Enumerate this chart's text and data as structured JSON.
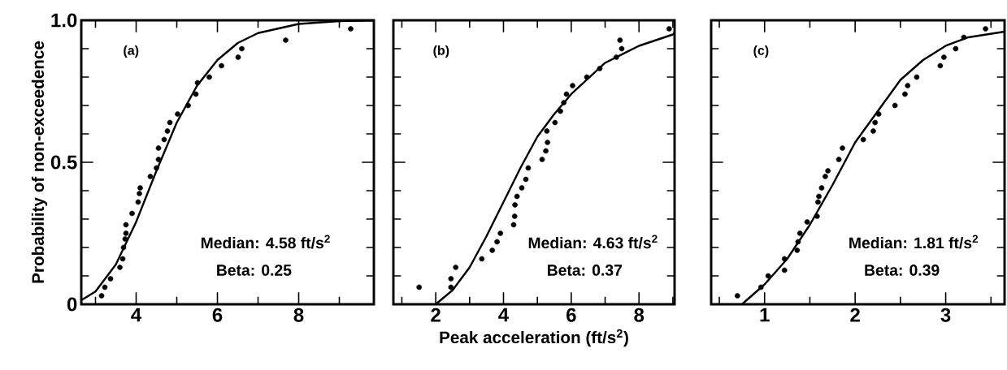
{
  "chart_data": [
    {
      "type": "scatter",
      "ylabel": "Probability of non-exceedence",
      "xlim": [
        2.65,
        9.85
      ],
      "ylim": [
        0,
        1
      ],
      "xticks": [
        {
          "value": 3,
          "label": null
        },
        4,
        {
          "value": 5,
          "label": null
        },
        6,
        {
          "value": 7,
          "label": null
        },
        8,
        {
          "value": 9,
          "label": null
        }
      ],
      "yticks": [
        0,
        {
          "value": 0.1,
          "label": null
        },
        {
          "value": 0.2,
          "label": null
        },
        {
          "value": 0.3,
          "label": null
        },
        {
          "value": 0.4,
          "label": null
        },
        0.5,
        {
          "value": 0.6,
          "label": null
        },
        {
          "value": 0.7,
          "label": null
        },
        {
          "value": 0.8,
          "label": null
        },
        {
          "value": 0.9,
          "label": null
        },
        {
          "value": 1,
          "label": "1.0"
        }
      ],
      "series": [
        {
          "color": "#000000",
          "marker": "circle",
          "x": [
            3.15,
            3.23,
            3.37,
            3.6,
            3.67,
            3.69,
            3.73,
            3.75,
            3.75,
            3.9,
            4.05,
            4.08,
            4.1,
            4.35,
            4.5,
            4.55,
            4.55,
            4.69,
            4.77,
            4.83,
            5.02,
            5.28,
            5.47,
            5.51,
            5.8,
            6.1,
            6.51,
            6.6,
            7.68,
            9.28
          ],
          "values": [
            0.03,
            0.06,
            0.09,
            0.13,
            0.16,
            0.2,
            0.23,
            0.25,
            0.28,
            0.32,
            0.36,
            0.39,
            0.41,
            0.45,
            0.48,
            0.51,
            0.55,
            0.58,
            0.61,
            0.64,
            0.67,
            0.7,
            0.74,
            0.78,
            0.8,
            0.84,
            0.87,
            0.9,
            0.93,
            0.97
          ]
        },
        {
          "type": "line",
          "color": "#000000",
          "marker": "none",
          "x": [
            2.65,
            3,
            3.5,
            4,
            4.5,
            5,
            5.5,
            6,
            6.5,
            7,
            8,
            9,
            9.85
          ],
          "values": [
            0.014,
            0.045,
            0.14,
            0.29,
            0.47,
            0.64,
            0.77,
            0.86,
            0.92,
            0.955,
            0.987,
            0.997,
            0.999
          ]
        }
      ],
      "annotations": [
        "(a)",
        "Median: 4.58 ft/s$^{2}$",
        "Beta: 0.25"
      ]
    },
    {
      "type": "scatter",
      "xlabel": "Peak acceleration (ft/s$^{2}$)",
      "xlim": [
        0.75,
        9.05
      ],
      "ylim": [
        0,
        1
      ],
      "tick_labels": "x",
      "xticks": [
        {
          "value": 1,
          "label": null
        },
        2,
        {
          "value": 3,
          "label": null
        },
        4,
        {
          "value": 5,
          "label": null
        },
        6,
        {
          "value": 7,
          "label": null
        },
        8,
        {
          "value": 9,
          "label": null
        }
      ],
      "yticks": [
        0,
        {
          "value": 0.1,
          "label": null
        },
        {
          "value": 0.2,
          "label": null
        },
        {
          "value": 0.3,
          "label": null
        },
        {
          "value": 0.4,
          "label": null
        },
        0.5,
        {
          "value": 0.6,
          "label": null
        },
        {
          "value": 0.7,
          "label": null
        },
        {
          "value": 0.8,
          "label": null
        },
        {
          "value": 0.9,
          "label": null
        },
        1
      ],
      "series": [
        {
          "color": "#000000",
          "marker": "circle",
          "x": [
            1.51,
            2.45,
            2.45,
            2.59,
            3.36,
            3.67,
            3.81,
            3.91,
            4.3,
            4.33,
            4.34,
            4.4,
            4.54,
            4.66,
            4.73,
            5.14,
            5.25,
            5.3,
            5.28,
            5.52,
            5.68,
            5.78,
            5.86,
            6.04,
            6.46,
            6.84,
            7.33,
            7.49,
            7.44,
            8.89
          ],
          "values": [
            0.06,
            0.06,
            0.09,
            0.13,
            0.16,
            0.19,
            0.22,
            0.25,
            0.28,
            0.31,
            0.35,
            0.38,
            0.41,
            0.44,
            0.48,
            0.51,
            0.54,
            0.57,
            0.61,
            0.64,
            0.68,
            0.71,
            0.74,
            0.77,
            0.8,
            0.83,
            0.87,
            0.9,
            0.93,
            0.97
          ]
        },
        {
          "type": "line",
          "color": "#000000",
          "marker": "none",
          "x": [
            2,
            2.5,
            3,
            3.5,
            4,
            4.5,
            5,
            5.5,
            6,
            7,
            8,
            9,
            9.05
          ],
          "values": [
            0.0,
            0.05,
            0.13,
            0.24,
            0.36,
            0.48,
            0.59,
            0.67,
            0.74,
            0.85,
            0.91,
            0.95,
            0.955
          ]
        }
      ],
      "annotations": [
        "(b)",
        "Median: 4.63 ft/s$^{2}$",
        "Beta: 0.37"
      ]
    },
    {
      "type": "scatter",
      "xlim": [
        0.41,
        3.65
      ],
      "ylim": [
        0,
        1
      ],
      "tick_labels": "x",
      "xticks": [
        {
          "value": 0.5,
          "label": null
        },
        1,
        {
          "value": 1.5,
          "label": null
        },
        2,
        {
          "value": 2.5,
          "label": null
        },
        3,
        {
          "value": 3.5,
          "label": null
        }
      ],
      "yticks": [
        0,
        {
          "value": 0.1,
          "label": null
        },
        {
          "value": 0.2,
          "label": null
        },
        {
          "value": 0.3,
          "label": null
        },
        {
          "value": 0.4,
          "label": null
        },
        0.5,
        {
          "value": 0.6,
          "label": null
        },
        {
          "value": 0.7,
          "label": null
        },
        {
          "value": 0.8,
          "label": null
        },
        {
          "value": 0.9,
          "label": null
        },
        1
      ],
      "series": [
        {
          "color": "#000000",
          "marker": "circle",
          "x": [
            0.7,
            0.96,
            1.04,
            1.22,
            1.22,
            1.36,
            1.37,
            1.39,
            1.47,
            1.58,
            1.59,
            1.6,
            1.63,
            1.67,
            1.7,
            1.82,
            1.86,
            2.09,
            2.2,
            2.22,
            2.26,
            2.44,
            2.55,
            2.58,
            2.68,
            2.94,
            2.98,
            3.11,
            3.2,
            3.44
          ],
          "values": [
            0.03,
            0.06,
            0.1,
            0.12,
            0.16,
            0.19,
            0.22,
            0.25,
            0.29,
            0.31,
            0.36,
            0.38,
            0.41,
            0.45,
            0.47,
            0.51,
            0.55,
            0.58,
            0.61,
            0.64,
            0.67,
            0.7,
            0.74,
            0.77,
            0.8,
            0.84,
            0.87,
            0.9,
            0.94,
            0.97
          ]
        },
        {
          "type": "line",
          "color": "#000000",
          "marker": "none",
          "x": [
            0.75,
            1,
            1.25,
            1.5,
            1.75,
            2,
            2.25,
            2.5,
            2.75,
            3,
            3.25,
            3.65
          ],
          "values": [
            0.0,
            0.07,
            0.16,
            0.28,
            0.42,
            0.57,
            0.68,
            0.79,
            0.86,
            0.91,
            0.94,
            0.96
          ]
        }
      ],
      "annotations": [
        "(c)",
        "Median: 1.81 ft/s$^{2}$",
        "Beta: 0.39"
      ]
    }
  ]
}
